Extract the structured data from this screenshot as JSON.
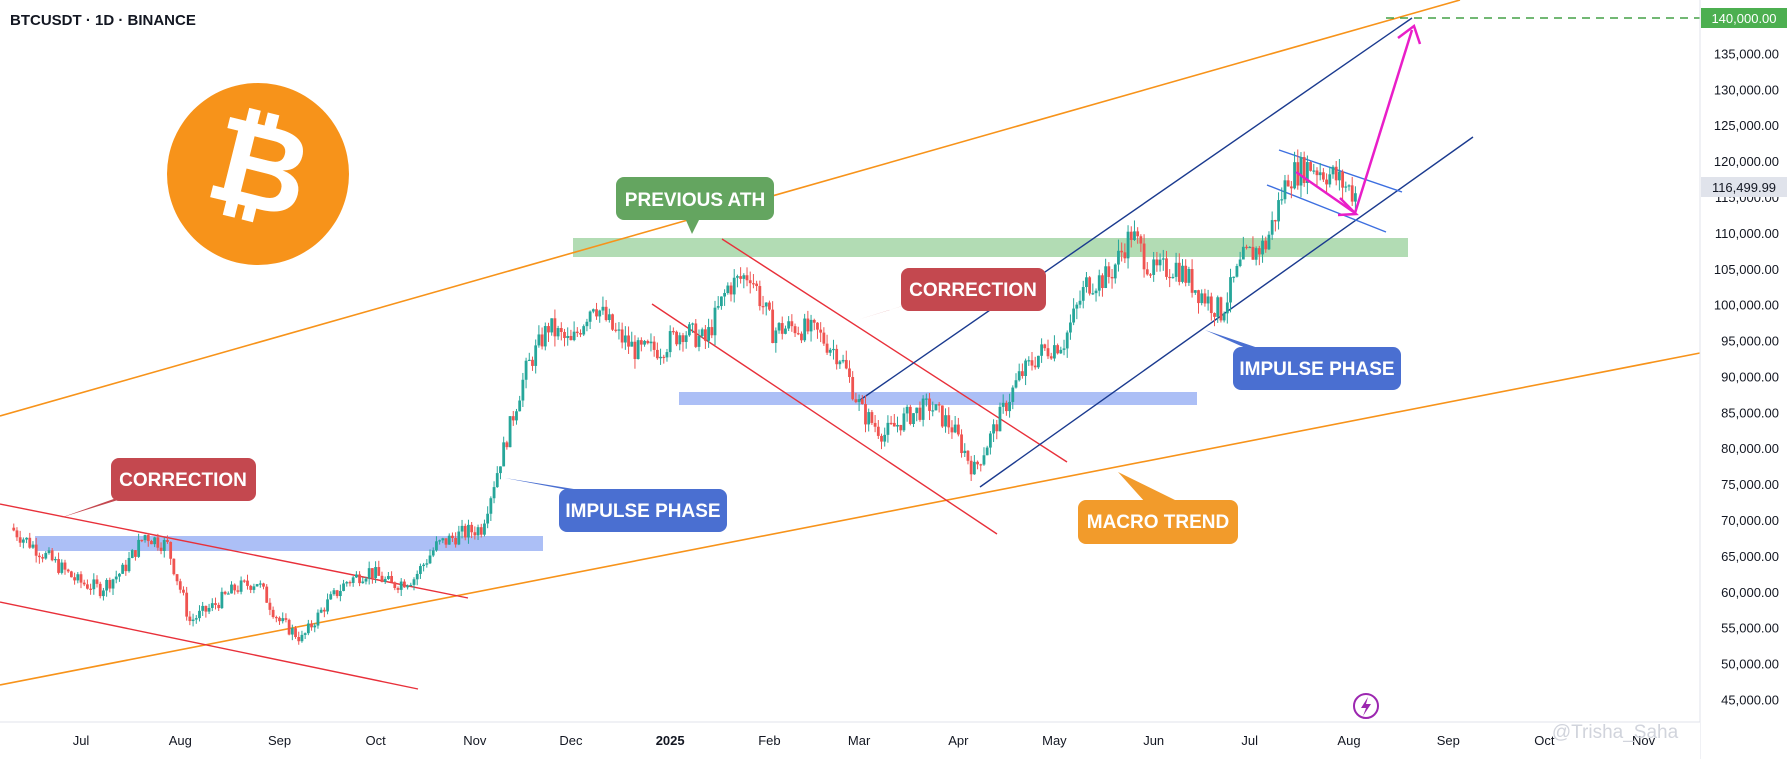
{
  "header": {
    "symbol_line": "BTCUSDT · 1D · BINANCE"
  },
  "watermark": "@Trisha_Saha",
  "logo": {
    "icon": "bitcoin-logo-icon",
    "glyph": "₿",
    "color": "#f7931a"
  },
  "colors": {
    "candle_up": "#26a69a",
    "candle_down": "#ef5350",
    "macro_trend": "#f7931a",
    "channel": "#1a3a8f",
    "correction_line": "#e8303a",
    "projection": "#e91ec8",
    "label_green": "#64a560",
    "label_red": "#c4484f",
    "label_blue": "#4a6fd1",
    "label_orange": "#f29b2b",
    "price_tag": "#4caf50"
  },
  "price_axis": {
    "ticks": [
      "140,000.00",
      "135,000.00",
      "130,000.00",
      "125,000.00",
      "120,000.00",
      "115,000.00",
      "110,000.00",
      "105,000.00",
      "100,000.00",
      "95,000.00",
      "90,000.00",
      "85,000.00",
      "80,000.00",
      "75,000.00",
      "70,000.00",
      "65,000.00",
      "60,000.00",
      "55,000.00",
      "50,000.00",
      "45,000.00"
    ],
    "current_price": "116,499.99",
    "target_price": "140,000.00"
  },
  "time_axis": {
    "ticks": [
      "Jul",
      "Aug",
      "Sep",
      "Oct",
      "Nov",
      "Dec",
      "2025",
      "Feb",
      "Mar",
      "Apr",
      "May",
      "Jun",
      "Jul",
      "Aug",
      "Sep",
      "Oct",
      "Nov"
    ],
    "bold_tick": "2025"
  },
  "callouts": [
    {
      "text": "PREVIOUS ATH",
      "style": "green"
    },
    {
      "text": "CORRECTION",
      "style": "red"
    },
    {
      "text": "CORRECTION",
      "style": "red"
    },
    {
      "text": "IMPULSE PHASE",
      "style": "blue"
    },
    {
      "text": "IMPULSE PHASE",
      "style": "blue"
    },
    {
      "text": "MACRO TREND",
      "style": "orange"
    }
  ],
  "chart_data": {
    "type": "candlestick",
    "title": "BTCUSDT · 1D · BINANCE",
    "xlabel": "",
    "ylabel": "",
    "ylim": [
      42500,
      144000
    ],
    "grid": false,
    "x": [
      "2024-06-10",
      "2024-06-17",
      "2024-06-24",
      "2024-07-01",
      "2024-07-08",
      "2024-07-15",
      "2024-07-22",
      "2024-07-29",
      "2024-08-05",
      "2024-08-12",
      "2024-08-19",
      "2024-08-26",
      "2024-09-02",
      "2024-09-09",
      "2024-09-16",
      "2024-09-23",
      "2024-09-30",
      "2024-10-07",
      "2024-10-14",
      "2024-10-21",
      "2024-10-28",
      "2024-11-04",
      "2024-11-11",
      "2024-11-18",
      "2024-11-25",
      "2024-12-02",
      "2024-12-09",
      "2024-12-16",
      "2024-12-23",
      "2024-12-30",
      "2025-01-06",
      "2025-01-13",
      "2025-01-20",
      "2025-01-27",
      "2025-02-03",
      "2025-02-10",
      "2025-02-17",
      "2025-02-24",
      "2025-03-03",
      "2025-03-10",
      "2025-03-17",
      "2025-03-24",
      "2025-03-31",
      "2025-04-07",
      "2025-04-14",
      "2025-04-21",
      "2025-04-28",
      "2025-05-05",
      "2025-05-12",
      "2025-05-19",
      "2025-05-26",
      "2025-06-02",
      "2025-06-09",
      "2025-06-16",
      "2025-06-23",
      "2025-06-30",
      "2025-07-07",
      "2025-07-14",
      "2025-07-21",
      "2025-07-28",
      "2025-08-04"
    ],
    "close": [
      69000,
      66500,
      64000,
      61500,
      60500,
      63000,
      68000,
      66500,
      56000,
      58000,
      60500,
      61500,
      56000,
      53500,
      58000,
      61500,
      63000,
      61000,
      62000,
      66500,
      68000,
      69000,
      80000,
      91000,
      97000,
      94500,
      100500,
      96000,
      93500,
      94000,
      96500,
      95000,
      102500,
      104500,
      96500,
      97000,
      96000,
      93000,
      85000,
      82000,
      84500,
      86000,
      83000,
      77000,
      83500,
      90000,
      93500,
      95000,
      103000,
      104000,
      110000,
      104500,
      105500,
      102000,
      99000,
      106500,
      108500,
      118000,
      119500,
      118000,
      115500
    ]
  }
}
